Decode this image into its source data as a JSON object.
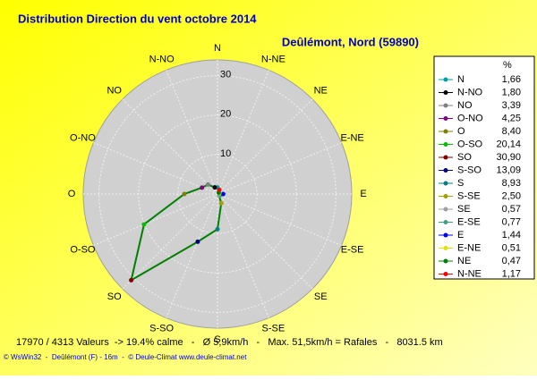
{
  "chart_data": {
    "type": "radar",
    "title": "Distribution Direction du vent   octobre 2014",
    "subtitle": "Deûlémont, Nord (59890)",
    "legend_title": "%",
    "categories": [
      "N",
      "N-NO",
      "NO",
      "O-NO",
      "O",
      "O-SO",
      "SO",
      "S-SO",
      "S",
      "S-SE",
      "SE",
      "E-SE",
      "E",
      "E-NE",
      "NE",
      "N-NE"
    ],
    "values": [
      1.66,
      1.8,
      3.39,
      4.25,
      8.4,
      20.14,
      30.9,
      13.09,
      8.93,
      2.5,
      0.57,
      0.77,
      1.44,
      0.51,
      0.47,
      1.17
    ],
    "value_labels": [
      "1,66",
      "1,80",
      "3,39",
      "4,25",
      "8,40",
      "20,14",
      "30,90",
      "13,09",
      "8,93",
      "2,50",
      "0,57",
      "0,77",
      "1,44",
      "0,51",
      "0,47",
      "1,17"
    ],
    "colors": [
      "#00a0a0",
      "#000000",
      "#808080",
      "#800080",
      "#808000",
      "#00c000",
      "#800000",
      "#000080",
      "#008080",
      "#a0a000",
      "#a0a0a0",
      "#40a080",
      "#0000ff",
      "#e0e000",
      "#008000",
      "#ff0000"
    ],
    "line_color": "#008000",
    "rlim": [
      0,
      34
    ],
    "rticks": [
      10,
      20,
      30
    ],
    "footer": "17970 / 4313 Valeurs  -> 19.4% calme   -   Ø 5,9km/h   -   Max. 51,5km/h = Rafales   -   8031.5 km",
    "credit": "© WsWin32  -  Deûlémont (F) - 16m  -  © Deule-Climat www.deule-climat.net"
  }
}
